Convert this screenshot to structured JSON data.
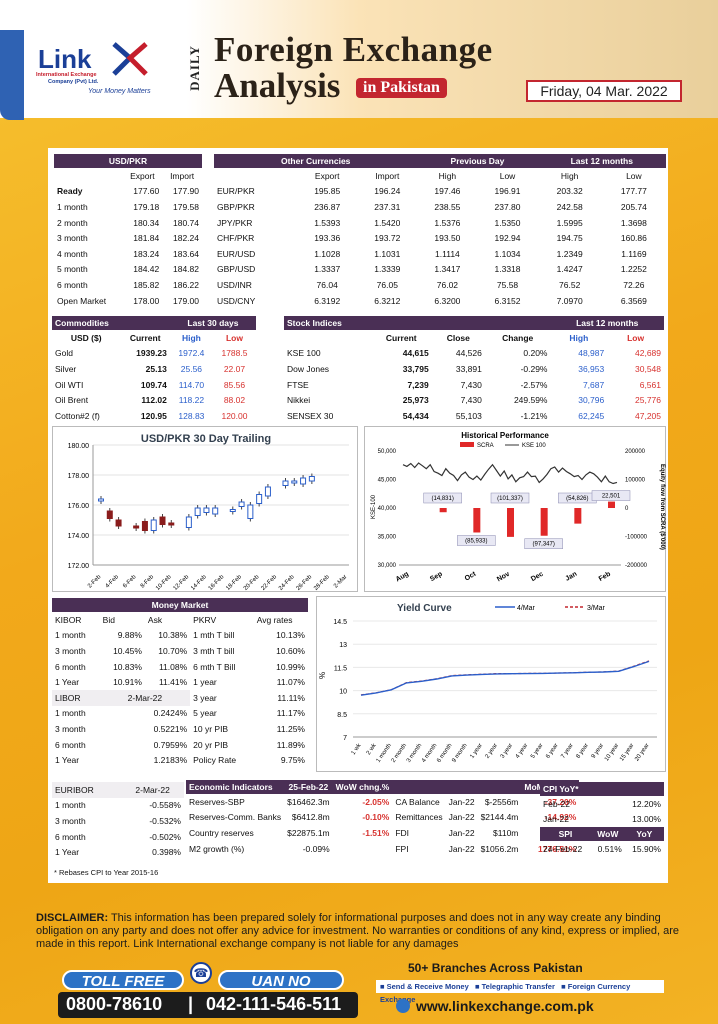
{
  "header": {
    "logo_word": "Link",
    "logo_sub1": "International Exchange",
    "logo_sub2": "Company (Pvt) Ltd.",
    "logo_tagline": "Your Money Matters",
    "daily": "DAILY",
    "title_line1": "Foreign Exchange",
    "title_line2": "Analysis",
    "title_badge": "in Pakistan",
    "date": "Friday, 04 Mar. 2022"
  },
  "usd_pkr": {
    "title": "USD/PKR",
    "columns": [
      "",
      "Export",
      "Import"
    ],
    "rows": [
      [
        "Ready",
        "177.60",
        "177.90"
      ],
      [
        "1 month",
        "179.18",
        "179.58"
      ],
      [
        "2 month",
        "180.34",
        "180.74"
      ],
      [
        "3 month",
        "181.84",
        "182.24"
      ],
      [
        "4 month",
        "183.24",
        "183.64"
      ],
      [
        "5 month",
        "184.42",
        "184.82"
      ],
      [
        "6 month",
        "185.82",
        "186.22"
      ],
      [
        "Open Market",
        "178.00",
        "179.00"
      ]
    ]
  },
  "other_currencies": {
    "title": "Other Currencies",
    "prev_title": "Previous Day",
    "last12_title": "Last 12 months",
    "columns": [
      "",
      "Export",
      "Import",
      "High",
      "Low",
      "High",
      "Low"
    ],
    "rows": [
      [
        "EUR/PKR",
        "195.85",
        "196.24",
        "197.46",
        "196.91",
        "203.32",
        "177.77"
      ],
      [
        "GBP/PKR",
        "236.87",
        "237.31",
        "238.55",
        "237.80",
        "242.58",
        "205.74"
      ],
      [
        "JPY/PKR",
        "1.5393",
        "1.5420",
        "1.5376",
        "1.5350",
        "1.5995",
        "1.3698"
      ],
      [
        "CHF/PKR",
        "193.36",
        "193.72",
        "193.50",
        "192.94",
        "194.75",
        "160.86"
      ],
      [
        "EUR/USD",
        "1.1028",
        "1.1031",
        "1.1114",
        "1.1034",
        "1.2349",
        "1.1169"
      ],
      [
        "GBP/USD",
        "1.3337",
        "1.3339",
        "1.3417",
        "1.3318",
        "1.4247",
        "1.2252"
      ],
      [
        "USD/INR",
        "76.04",
        "76.05",
        "76.02",
        "75.58",
        "76.52",
        "72.26"
      ],
      [
        "USD/CNY",
        "6.3192",
        "6.3212",
        "6.3200",
        "6.3152",
        "7.0970",
        "6.3569"
      ]
    ]
  },
  "commodities": {
    "title": "Commodities",
    "last30_title": "Last 30 days",
    "columns": [
      "USD ($)",
      "Current",
      "High",
      "Low"
    ],
    "rows": [
      [
        "Gold",
        "1939.23",
        "1972.4",
        "1788.5"
      ],
      [
        "Silver",
        "25.13",
        "25.56",
        "22.07"
      ],
      [
        "Oil WTI",
        "109.74",
        "114.70",
        "85.56"
      ],
      [
        "Oil Brent",
        "112.02",
        "118.22",
        "88.02"
      ],
      [
        "Cotton#2 (f)",
        "120.95",
        "128.83",
        "120.00"
      ]
    ]
  },
  "stock_indices": {
    "title": "Stock Indices",
    "last12_title": "Last 12 months",
    "columns": [
      "",
      "Current",
      "Close",
      "Change",
      "High",
      "Low"
    ],
    "rows": [
      [
        "KSE 100",
        "44,615",
        "44,526",
        "0.20%",
        "48,987",
        "42,689"
      ],
      [
        "Dow Jones",
        "33,795",
        "33,891",
        "-0.29%",
        "36,953",
        "30,548"
      ],
      [
        "FTSE",
        "7,239",
        "7,430",
        "-2.57%",
        "7,687",
        "6,561"
      ],
      [
        "Nikkei",
        "25,973",
        "7,430",
        "249.59%",
        "30,796",
        "25,776"
      ],
      [
        "SENSEX 30",
        "54,434",
        "55,103",
        "-1.21%",
        "62,245",
        "47,205"
      ]
    ]
  },
  "chart_data": [
    {
      "type": "candlestick",
      "title": "USD/PKR 30 Day Trailing",
      "ylim": [
        172,
        180
      ],
      "yticks": [
        "172.00",
        "174.00",
        "176.00",
        "178.00",
        "180.00"
      ],
      "x": [
        "2-Feb",
        "4-Feb",
        "6-Feb",
        "8-Feb",
        "10-Feb",
        "12-Feb",
        "14-Feb",
        "16-Feb",
        "18-Feb",
        "20-Feb",
        "22-Feb",
        "24-Feb",
        "26-Feb",
        "28-Feb",
        "2-Mar"
      ],
      "series": [
        {
          "name": "",
          "candles": [
            {
              "d": 0,
              "o": 176.4,
              "c": 176.4
            },
            {
              "d": 1,
              "o": 175.6,
              "c": 175.1
            },
            {
              "d": 2,
              "o": 175.0,
              "c": 174.6
            },
            {
              "d": 4,
              "o": 174.6,
              "c": 174.5
            },
            {
              "d": 5,
              "o": 174.9,
              "c": 174.3
            },
            {
              "d": 6,
              "o": 174.3,
              "c": 175.0
            },
            {
              "d": 7,
              "o": 175.2,
              "c": 174.7
            },
            {
              "d": 8,
              "o": 174.8,
              "c": 174.7
            },
            {
              "d": 10,
              "o": 174.5,
              "c": 175.2
            },
            {
              "d": 11,
              "o": 175.3,
              "c": 175.8
            },
            {
              "d": 12,
              "o": 175.5,
              "c": 175.8
            },
            {
              "d": 13,
              "o": 175.4,
              "c": 175.8
            },
            {
              "d": 15,
              "o": 175.7,
              "c": 175.7
            },
            {
              "d": 16,
              "o": 175.9,
              "c": 176.2
            },
            {
              "d": 17,
              "o": 175.1,
              "c": 176.0
            },
            {
              "d": 18,
              "o": 176.1,
              "c": 176.7
            },
            {
              "d": 19,
              "o": 176.6,
              "c": 177.2
            },
            {
              "d": 21,
              "o": 177.3,
              "c": 177.6
            },
            {
              "d": 22,
              "o": 177.5,
              "c": 177.6
            },
            {
              "d": 23,
              "o": 177.4,
              "c": 177.8
            },
            {
              "d": 24,
              "o": 177.6,
              "c": 177.9
            }
          ]
        }
      ]
    },
    {
      "type": "bar+line",
      "title": "Historical Performance",
      "legend": [
        "SCRA",
        "KSE 100"
      ],
      "left_axis_label": "KSE-100",
      "right_axis_label": "Equity flow from SCRA ($'000)",
      "left_ticks": [
        "30,000",
        "35,000",
        "40,000",
        "45,000",
        "50,000"
      ],
      "right_ticks": [
        "-200000",
        "-100000",
        "0",
        "100000",
        "200000"
      ],
      "x": [
        "Aug",
        "Sep",
        "Oct",
        "Nov",
        "Dec",
        "Jan",
        "Feb"
      ],
      "scra": [
        {
          "label": "(14,831)",
          "value": -14831
        },
        {
          "label": "(85,933)",
          "value": -85933
        },
        {
          "label": "(101,337)",
          "value": -101337
        },
        {
          "label": "(97,347)",
          "value": -97347
        },
        {
          "label": "(54,826)",
          "value": -54826
        },
        {
          "label": "22,501",
          "value": 22501
        }
      ],
      "scra_label_text": [
        "(14,831)",
        "(85,933)",
        "(101,337)",
        "(97,347)",
        "(54,826)",
        "22,501"
      ],
      "kse_values": [
        47600,
        47300,
        47800,
        47100,
        47900,
        47400,
        46900,
        47600,
        46400,
        46100,
        45700,
        46900,
        46100,
        45700,
        44800,
        45800,
        46300,
        45400,
        45000,
        45600,
        44900,
        45900,
        46800,
        47600,
        46600,
        45600,
        46500,
        45100,
        45800,
        44600,
        45300,
        45500,
        46300,
        45500,
        45600,
        44500,
        45100,
        45900,
        46900,
        47200,
        46300,
        47000,
        46400,
        46000,
        45500,
        45700,
        45000,
        45800,
        46300,
        46000,
        45400,
        44600,
        45600,
        44600,
        44300,
        44500
      ]
    },
    {
      "type": "line",
      "title": "Yield Curve",
      "legend": [
        "4/Mar",
        "3/Mar"
      ],
      "ylabel": "%",
      "yticks": [
        "7",
        "8.5",
        "10",
        "11.5",
        "13",
        "14.5"
      ],
      "ylim": [
        7,
        14.5
      ],
      "categories": [
        "1 wk",
        "2 wk",
        "1 month",
        "2 month",
        "3 month",
        "4 month",
        "6 month",
        "9 month",
        "1 year",
        "2 year",
        "3 year",
        "4 year",
        "5 year",
        "6 year",
        "7 year",
        "8 year",
        "9 year",
        "10 year",
        "15 year",
        "20 year"
      ],
      "series": [
        {
          "name": "4/Mar",
          "values": [
            9.7,
            9.85,
            10.05,
            10.5,
            10.6,
            10.75,
            10.95,
            11.0,
            11.05,
            11.08,
            11.09,
            11.1,
            11.11,
            11.13,
            11.15,
            11.18,
            11.2,
            11.25,
            11.55,
            11.89
          ]
        },
        {
          "name": "3/Mar",
          "values": [
            9.72,
            9.86,
            10.06,
            10.52,
            10.62,
            10.77,
            10.97,
            11.02,
            11.06,
            11.1,
            11.1,
            11.11,
            11.12,
            11.14,
            11.16,
            11.19,
            11.21,
            11.26,
            11.58,
            11.92
          ]
        }
      ]
    }
  ],
  "money_market": {
    "title": "Money Market",
    "kibor_columns": [
      "KIBOR",
      "Bid",
      "Ask"
    ],
    "kibor_rows": [
      [
        "1 month",
        "9.88%",
        "10.38%"
      ],
      [
        "3 month",
        "10.45%",
        "10.70%"
      ],
      [
        "6 month",
        "10.83%",
        "11.08%"
      ],
      [
        "1 Year",
        "10.91%",
        "11.41%"
      ]
    ],
    "libor_header": [
      "LIBOR",
      "2-Mar-22"
    ],
    "libor_rows": [
      [
        "1 month",
        "0.2424%"
      ],
      [
        "3 month",
        "0.5221%"
      ],
      [
        "6 month",
        "0.7959%"
      ],
      [
        "1 Year",
        "1.2183%"
      ]
    ],
    "pkrv_columns": [
      "PKRV",
      "Avg rates"
    ],
    "pkrv_rows": [
      [
        "1 mth T bill",
        "10.13%"
      ],
      [
        "3 mth T bill",
        "10.60%"
      ],
      [
        "6 mth T Bill",
        "10.99%"
      ],
      [
        "1 year",
        "11.07%"
      ],
      [
        "3 year",
        "11.11%"
      ],
      [
        "5 year",
        "11.17%"
      ],
      [
        "10 yr PIB",
        "11.25%"
      ],
      [
        "20 yr PIB",
        "11.89%"
      ],
      [
        "Policy Rate",
        "9.75%"
      ]
    ]
  },
  "euribor": {
    "header": [
      "EURIBOR",
      "2-Mar-22"
    ],
    "rows": [
      [
        "1 month",
        "-0.558%"
      ],
      [
        "3 month",
        "-0.532%"
      ],
      [
        "6 month",
        "-0.502%"
      ],
      [
        "1 Year",
        "0.398%"
      ]
    ]
  },
  "economic_indicators": {
    "title": "Economic Indicators",
    "date": "25-Feb-22",
    "wow_label": "WoW chng.%",
    "mom_label": "MoM chng.%",
    "rows_left": [
      [
        "Reserves-SBP",
        "$16462.3m",
        "-2.05%"
      ],
      [
        "Reserves-Comm. Banks",
        "$6412.8m",
        "-0.10%"
      ],
      [
        "Country reserves",
        "$22875.1m",
        "-1.51%"
      ],
      [
        "M2 growth (%)",
        "-0.09%",
        ""
      ]
    ],
    "rows_right": [
      [
        "CA Balance",
        "Jan-22",
        "$-2556m",
        "-37.20%"
      ],
      [
        "Remittances",
        "Jan-22",
        "$2144.4m",
        "-14.92%"
      ],
      [
        "FDI",
        "Jan-22",
        "$110m",
        "-49.70%"
      ],
      [
        "FPI",
        "Jan-22",
        "$1056.2m",
        "1776.51%"
      ]
    ]
  },
  "cpi": {
    "title": "CPI YoY*",
    "rows": [
      [
        "Feb-22",
        "12.20%"
      ],
      [
        "Jan-22",
        "13.00%"
      ]
    ],
    "spi_columns": [
      "SPI",
      "WoW",
      "YoY"
    ],
    "spi_row": [
      "24-Feb-22",
      "0.51%",
      "15.90%"
    ]
  },
  "footnote": "* Rebases CPI to Year 2015-16",
  "disclaimer": {
    "label": "DISCLAIMER:",
    "text": " This information has been prepared solely for informational purposes and does not in any way create any binding obligation on any  party and does not offer any advice for investment. No warranties or conditions of any kind, express or implied, are made in this report. Link International exchange company is not liable for any damages"
  },
  "footer": {
    "toll_free_label": "TOLL FREE",
    "uan_label": "UAN NO",
    "toll_free_number": "0800-78610",
    "separator": "|",
    "uan_number": "042-111-546-511",
    "branches": "50+ Branches Across Pakistan",
    "services": [
      "Send & Receive Money",
      "Telegraphic Transfer",
      "Foreign Currency Exchange"
    ],
    "website": "www.linkexchange.com.pk"
  },
  "colors": {
    "header_purple": "#4a2f55",
    "accent_red": "#c3262f",
    "brand_blue": "#1b3f97",
    "bg_yellow": "#f2a91b"
  }
}
